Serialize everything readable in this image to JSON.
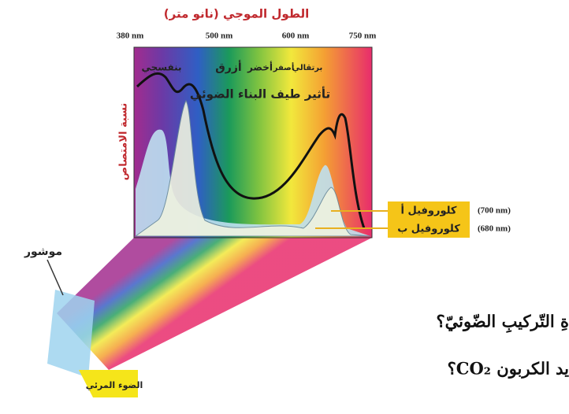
{
  "header": {
    "title": "الطول الموجي (نانو متر)"
  },
  "axis": {
    "ticks": [
      "380 nm",
      "500 nm",
      "600 nm",
      "750 nm"
    ],
    "y_label": "نسبة الامتصاص"
  },
  "spectrum": {
    "colors": [
      "بنفسجي",
      "أزرق",
      "أخضر",
      "أصفر",
      "برتقالي"
    ],
    "curve_label": "تأثير طيف البناء الضوئي"
  },
  "pigments": [
    {
      "name": "كلوروفيل أ",
      "wavelength": "(700 nm)"
    },
    {
      "name": "كلوروفيل ب",
      "wavelength": "(680 nm)"
    }
  ],
  "prism": {
    "label": "موشور",
    "light": "الضوء المرئي"
  },
  "questions": [
    "ةِ التّركيبِ الضّوئيّ؟",
    "يد الكربون CO₂؟"
  ]
}
